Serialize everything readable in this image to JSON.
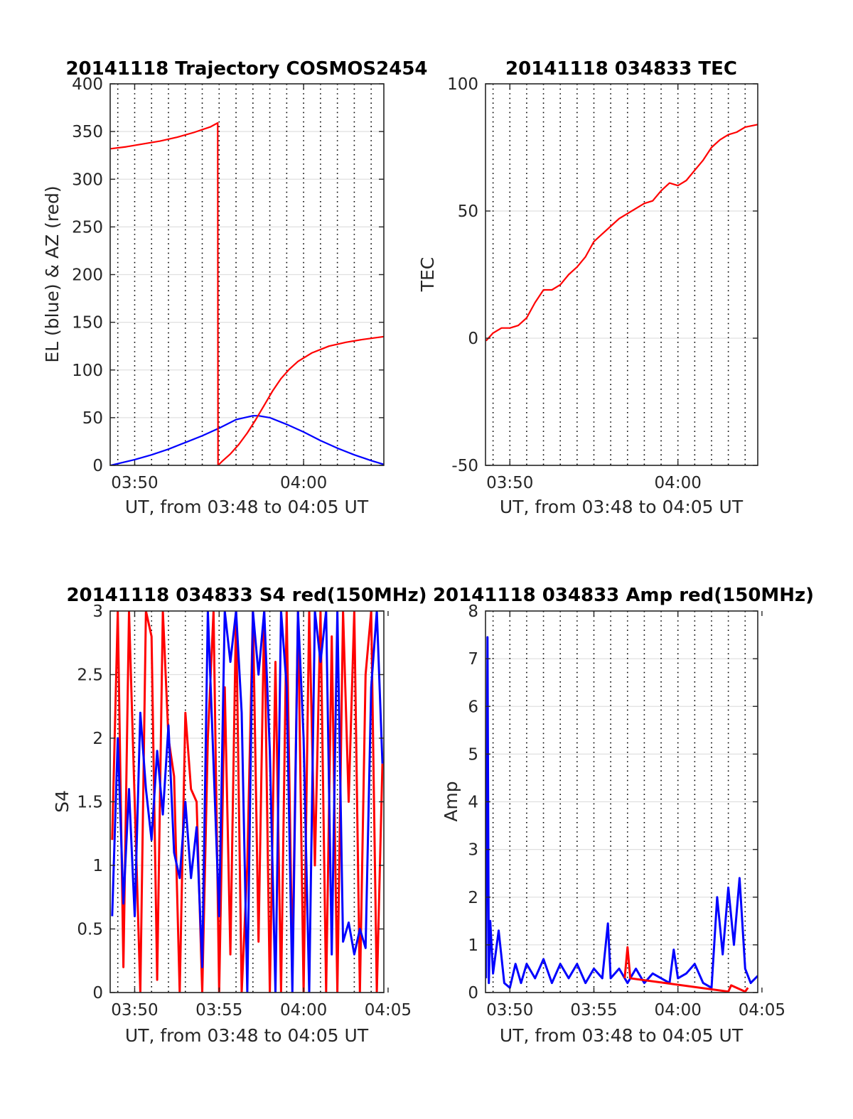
{
  "colors": {
    "red": "#ff0000",
    "blue": "#0000ff",
    "axis": "#262626",
    "grid": "#e0e0e0",
    "vgrid": "#000000"
  },
  "chart_data": [
    {
      "type": "line",
      "title": "20141118 Trajectory COSMOS2454",
      "ylabel": "EL (blue) & AZ (red)",
      "xlabel": "UT, from 03:48 to 04:05 UT",
      "xlim": [
        "03:48:33",
        "04:04:45"
      ],
      "ylim": [
        0,
        400
      ],
      "yticks": [
        0,
        50,
        100,
        150,
        200,
        250,
        300,
        350,
        400
      ],
      "xticks": [
        {
          "t": "03:50",
          "label": "03:50"
        },
        {
          "t": "04:00",
          "label": "04:00"
        }
      ],
      "grid": true,
      "series": [
        {
          "color": "blue",
          "x": [
            "03:48:35",
            "03:50:00",
            "03:51:00",
            "03:52:00",
            "03:53:00",
            "03:54:00",
            "03:55:00",
            "03:56:00",
            "03:57:00",
            "03:57:20",
            "03:58:00",
            "03:59:00",
            "04:00:00",
            "04:01:00",
            "04:02:00",
            "04:03:00",
            "04:04:00",
            "04:04:45"
          ],
          "y": [
            0,
            6,
            11,
            17,
            24,
            31,
            39,
            48,
            52,
            52,
            50,
            43,
            35,
            26,
            18,
            11,
            5,
            1
          ]
        },
        {
          "color": "red",
          "x": [
            "03:48:35",
            "03:49:30",
            "03:50:30",
            "03:51:30",
            "03:52:30",
            "03:53:30",
            "03:54:30",
            "03:54:55",
            "03:54:56",
            "03:55:10",
            "03:55:40",
            "03:56:10",
            "03:56:40",
            "03:57:10",
            "03:57:40",
            "03:58:10",
            "03:58:40",
            "03:59:10",
            "03:59:40",
            "04:00:30",
            "04:01:30",
            "04:02:30",
            "04:03:30",
            "04:04:45"
          ],
          "y": [
            332,
            334,
            337,
            340,
            344,
            349,
            355,
            359,
            0,
            4,
            12,
            22,
            34,
            48,
            63,
            78,
            91,
            101,
            109,
            118,
            125,
            129,
            132,
            135
          ]
        }
      ]
    },
    {
      "type": "line",
      "title": "20141118 034833 TEC",
      "ylabel": "TEC",
      "xlabel": "UT, from 03:48 to 04:05 UT",
      "xlim": [
        "03:48:33",
        "04:04:45"
      ],
      "ylim": [
        -50,
        100
      ],
      "yticks": [
        -50,
        0,
        50,
        100
      ],
      "xticks": [
        {
          "t": "03:50",
          "label": "03:50"
        },
        {
          "t": "04:00",
          "label": "04:00"
        }
      ],
      "grid": true,
      "series": [
        {
          "color": "red",
          "x": [
            "03:48:35",
            "03:49:00",
            "03:49:30",
            "03:50:00",
            "03:50:30",
            "03:51:00",
            "03:51:30",
            "03:52:00",
            "03:52:30",
            "03:53:00",
            "03:53:30",
            "03:54:00",
            "03:54:30",
            "03:55:00",
            "03:55:30",
            "03:56:00",
            "03:56:30",
            "03:57:00",
            "03:57:30",
            "03:58:00",
            "03:58:30",
            "03:59:00",
            "03:59:30",
            "04:00:00",
            "04:00:30",
            "04:01:00",
            "04:01:30",
            "04:02:00",
            "04:02:30",
            "04:03:00",
            "04:03:30",
            "04:04:00",
            "04:04:45"
          ],
          "y": [
            -1,
            2,
            4,
            4,
            5,
            8,
            14,
            19,
            19,
            21,
            25,
            28,
            32,
            38,
            41,
            44,
            47,
            49,
            51,
            53,
            54,
            58,
            61,
            60,
            62,
            66,
            70,
            75,
            78,
            80,
            81,
            83,
            84
          ]
        }
      ]
    },
    {
      "type": "line",
      "title": "20141118 034833 S4 red(150MHz)",
      "ylabel": "S4",
      "xlabel": "UT, from 03:48 to 04:05 UT",
      "xlim": [
        "03:48:33",
        "04:04:45"
      ],
      "ylim": [
        0,
        3
      ],
      "yticks": [
        0,
        0.5,
        1,
        1.5,
        2,
        2.5,
        3
      ],
      "xticks": [
        {
          "t": "03:50",
          "label": "03:50"
        },
        {
          "t": "03:55",
          "label": "03:55"
        },
        {
          "t": "04:00",
          "label": "04:00"
        },
        {
          "t": "04:05",
          "label": "04:05"
        }
      ],
      "grid": true,
      "series": [
        {
          "color": "red",
          "x": [
            "03:48:40",
            "03:49:00",
            "03:49:20",
            "03:49:40",
            "03:50:00",
            "03:50:20",
            "03:50:40",
            "03:51:00",
            "03:51:20",
            "03:51:40",
            "03:52:00",
            "03:52:20",
            "03:52:40",
            "03:53:00",
            "03:53:20",
            "03:53:40",
            "03:54:00",
            "03:54:20",
            "03:54:40",
            "03:55:00",
            "03:55:20",
            "03:55:40",
            "03:56:00",
            "03:56:20",
            "03:56:40",
            "03:57:00",
            "03:57:20",
            "03:57:40",
            "03:58:00",
            "03:58:20",
            "03:58:40",
            "03:59:00",
            "03:59:20",
            "03:59:40",
            "04:00:00",
            "04:00:20",
            "04:00:40",
            "04:01:00",
            "04:01:20",
            "04:01:40",
            "04:02:00",
            "04:02:20",
            "04:02:40",
            "04:03:00",
            "04:03:20",
            "04:03:40",
            "04:04:00",
            "04:04:20",
            "04:04:40"
          ],
          "y": [
            1.2,
            3.0,
            0.2,
            3.0,
            1.5,
            0.0,
            3.0,
            2.8,
            0.1,
            3.0,
            2.0,
            1.7,
            0.0,
            2.2,
            1.6,
            1.5,
            0.0,
            2.0,
            3.0,
            0.0,
            2.4,
            0.3,
            3.0,
            0.0,
            1.0,
            3.0,
            0.4,
            3.0,
            0.0,
            2.6,
            0.0,
            3.0,
            0.2,
            3.0,
            0.0,
            3.0,
            1.0,
            3.0,
            0.0,
            2.8,
            0.0,
            3.0,
            1.5,
            3.0,
            0.0,
            2.5,
            3.0,
            0.0,
            1.8
          ]
        },
        {
          "color": "blue",
          "x": [
            "03:48:40",
            "03:49:00",
            "03:49:20",
            "03:49:40",
            "03:50:00",
            "03:50:20",
            "03:50:40",
            "03:51:00",
            "03:51:20",
            "03:51:40",
            "03:52:00",
            "03:52:20",
            "03:52:40",
            "03:53:00",
            "03:53:20",
            "03:53:40",
            "03:54:00",
            "03:54:20",
            "03:54:40",
            "03:55:00",
            "03:55:20",
            "03:55:40",
            "03:56:00",
            "03:56:20",
            "03:56:40",
            "03:57:00",
            "03:57:20",
            "03:57:40",
            "03:58:00",
            "03:58:20",
            "03:58:40",
            "03:59:00",
            "03:59:20",
            "03:59:40",
            "04:00:00",
            "04:00:20",
            "04:00:40",
            "04:01:00",
            "04:01:20",
            "04:01:40",
            "04:02:00",
            "04:02:20",
            "04:02:40",
            "04:03:00",
            "04:03:20",
            "04:03:40",
            "04:04:00",
            "04:04:20",
            "04:04:40"
          ],
          "y": [
            0.6,
            2.0,
            0.7,
            1.6,
            0.6,
            2.2,
            1.6,
            1.2,
            1.9,
            1.4,
            2.1,
            1.1,
            0.9,
            1.5,
            0.9,
            1.3,
            0.2,
            3.0,
            1.8,
            0.6,
            3.0,
            2.6,
            3.0,
            2.2,
            0.0,
            3.0,
            2.5,
            3.0,
            1.9,
            0.0,
            3.0,
            2.4,
            0.0,
            3.0,
            2.0,
            0.0,
            3.0,
            2.6,
            3.0,
            0.3,
            3.0,
            0.4,
            0.55,
            0.3,
            0.5,
            0.35,
            2.4,
            3.0,
            1.8
          ]
        }
      ]
    },
    {
      "type": "line",
      "title": "20141118 034833 Amp red(150MHz)",
      "ylabel": "Amp",
      "xlabel": "UT, from 03:48 to 04:05 UT",
      "xlim": [
        "03:48:33",
        "04:04:45"
      ],
      "ylim": [
        0,
        8
      ],
      "yticks": [
        0,
        1,
        2,
        3,
        4,
        5,
        6,
        7,
        8
      ],
      "xticks": [
        {
          "t": "03:50",
          "label": "03:50"
        },
        {
          "t": "03:55",
          "label": "03:55"
        },
        {
          "t": "04:00",
          "label": "04:00"
        },
        {
          "t": "04:05",
          "label": "04:05"
        }
      ],
      "grid": true,
      "series": [
        {
          "color": "blue",
          "x": [
            "03:48:35",
            "03:48:40",
            "03:48:45",
            "03:48:50",
            "03:49:00",
            "03:49:20",
            "03:49:40",
            "03:50:00",
            "03:50:20",
            "03:50:40",
            "03:51:00",
            "03:51:30",
            "03:52:00",
            "03:52:30",
            "03:53:00",
            "03:53:30",
            "03:54:00",
            "03:54:30",
            "03:55:00",
            "03:55:30",
            "03:55:50",
            "03:56:00",
            "03:56:30",
            "03:57:00",
            "03:57:30",
            "03:58:00",
            "03:58:30",
            "03:59:00",
            "03:59:30",
            "03:59:45",
            "04:00:00",
            "04:00:30",
            "04:01:00",
            "04:01:30",
            "04:02:00",
            "04:02:20",
            "04:02:40",
            "04:03:00",
            "04:03:20",
            "04:03:40",
            "04:04:00",
            "04:04:20",
            "04:04:45"
          ],
          "y": [
            0.3,
            7.45,
            0.2,
            1.5,
            0.4,
            1.3,
            0.2,
            0.1,
            0.6,
            0.2,
            0.6,
            0.3,
            0.7,
            0.2,
            0.6,
            0.3,
            0.6,
            0.2,
            0.5,
            0.3,
            1.45,
            0.3,
            0.5,
            0.2,
            0.5,
            0.2,
            0.4,
            0.3,
            0.2,
            0.9,
            0.3,
            0.4,
            0.6,
            0.2,
            0.1,
            2.0,
            0.8,
            2.2,
            1.0,
            2.4,
            0.5,
            0.2,
            0.35
          ]
        },
        {
          "color": "red",
          "x": [
            "03:56:50",
            "03:57:00",
            "03:57:10",
            "04:03:00",
            "04:03:10",
            "04:04:00",
            "04:04:10"
          ],
          "y": [
            0.3,
            0.95,
            0.3,
            0.02,
            0.15,
            0.02,
            0.1
          ]
        }
      ]
    }
  ]
}
